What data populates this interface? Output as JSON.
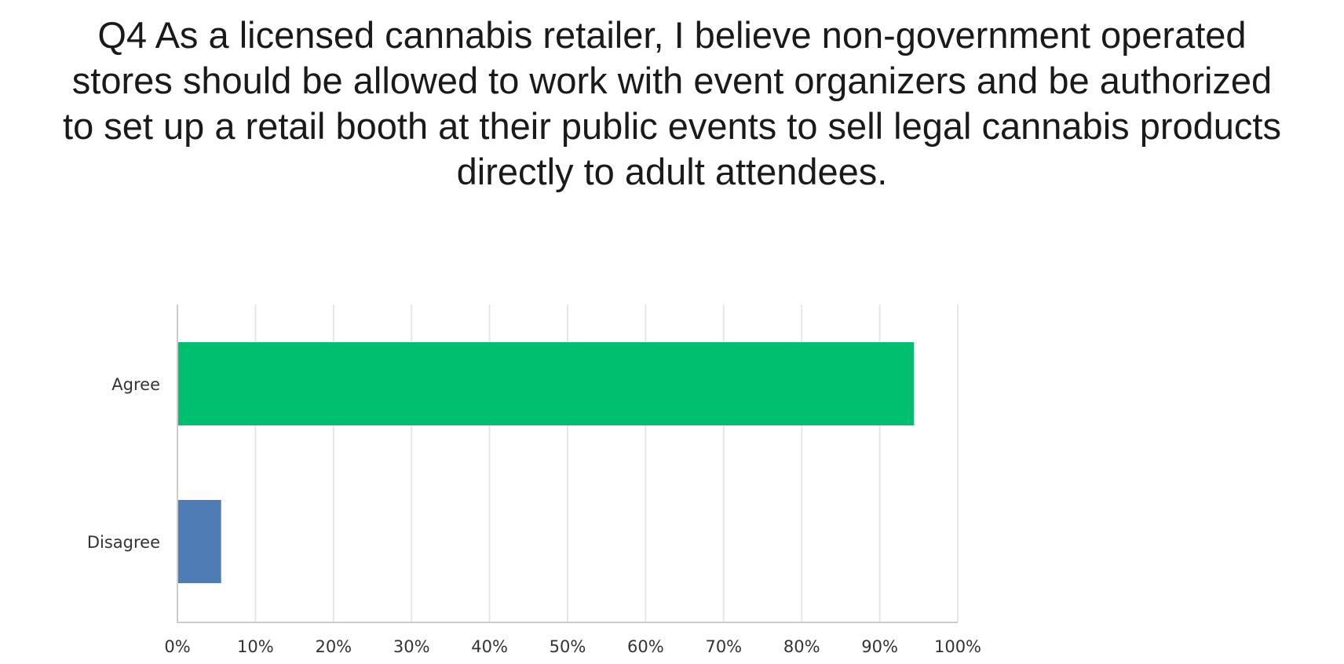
{
  "chart_data": {
    "type": "bar",
    "orientation": "horizontal",
    "title_lines": [
      "Q4 As a licensed cannabis retailer, I believe non-government operated",
      "stores should be allowed to work with event organizers and be authorized",
      "to set up a retail booth at their public events to sell legal cannabis products",
      "directly to adult attendees."
    ],
    "categories": [
      "Agree",
      "Disagree"
    ],
    "values": [
      94.4,
      5.6
    ],
    "unit": "%",
    "xlim": [
      0,
      100
    ],
    "xticks": [
      "0%",
      "10%",
      "20%",
      "30%",
      "40%",
      "50%",
      "60%",
      "70%",
      "80%",
      "90%",
      "100%"
    ],
    "tick_values": [
      0,
      10,
      20,
      30,
      40,
      50,
      60,
      70,
      80,
      90,
      100
    ],
    "grid": true,
    "legend": "none",
    "colors": [
      "#00bf6f",
      "#507cb6"
    ],
    "grid_color": "#e6e6e6",
    "axis_color": "#cccccc"
  }
}
